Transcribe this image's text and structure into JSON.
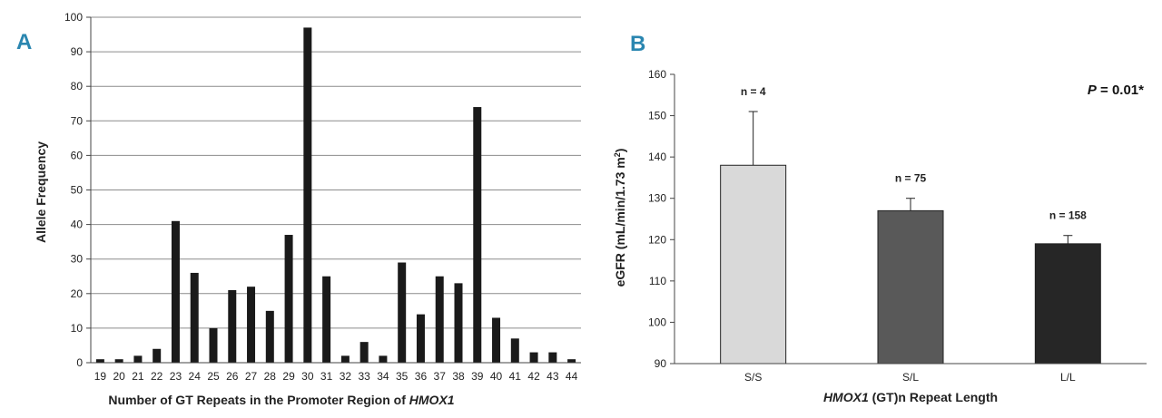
{
  "chart_data": [
    {
      "panel_label": "A",
      "type": "bar",
      "categories": [
        "19",
        "20",
        "21",
        "22",
        "23",
        "24",
        "25",
        "26",
        "27",
        "28",
        "29",
        "30",
        "31",
        "32",
        "33",
        "34",
        "35",
        "36",
        "37",
        "38",
        "39",
        "40",
        "41",
        "42",
        "43",
        "44"
      ],
      "values": [
        1,
        1,
        2,
        4,
        41,
        26,
        10,
        21,
        22,
        15,
        37,
        97,
        25,
        2,
        6,
        2,
        29,
        14,
        25,
        23,
        74,
        13,
        7,
        3,
        3,
        1
      ],
      "xlabel_prefix": "Number of GT Repeats in the Promoter Region of ",
      "xlabel_italic": "HMOX1",
      "ylabel": "Allele Frequency",
      "ylim": [
        0,
        100
      ],
      "yticks": [
        0,
        10,
        20,
        30,
        40,
        50,
        60,
        70,
        80,
        90,
        100
      ],
      "bar_color": "#1a1a1a",
      "grid": true
    },
    {
      "panel_label": "B",
      "type": "bar",
      "categories": [
        "S/S",
        "S/L",
        "L/L"
      ],
      "values": [
        138,
        127,
        119
      ],
      "errors": [
        13,
        3,
        2
      ],
      "n_labels": [
        "n = 4",
        "n = 75",
        "n = 158"
      ],
      "colors": [
        "#d9d9d9",
        "#595959",
        "#262626"
      ],
      "xlabel_italic": "HMOX1",
      "xlabel_suffix": " (GT)n Repeat Length",
      "ylabel": "eGFR (mL/min/1.73 m",
      "ylabel_sup": "2",
      "ylabel_close": ")",
      "ylim": [
        90,
        160
      ],
      "yticks": [
        90,
        100,
        110,
        120,
        130,
        140,
        150,
        160
      ],
      "p_italic": "P",
      "p_rest": " = 0.01*",
      "grid": false
    }
  ]
}
